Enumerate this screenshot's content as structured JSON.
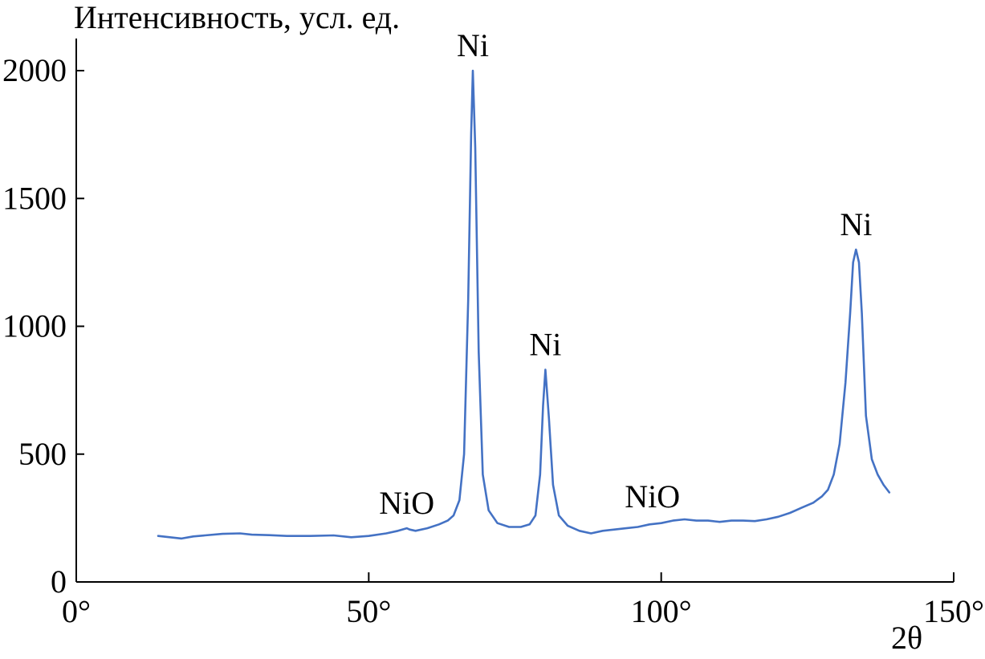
{
  "chart_data": {
    "type": "line",
    "title": "",
    "ylabel": "Интенсивность, усл. ед.",
    "xlabel": "2θ",
    "xlim": [
      0,
      150
    ],
    "ylim": [
      0,
      2000
    ],
    "xticks": [
      0,
      50,
      100,
      150
    ],
    "xtick_labels": [
      "0°",
      "50°",
      "100°",
      "150°"
    ],
    "yticks": [
      0,
      500,
      1000,
      1500,
      2000
    ],
    "ytick_labels": [
      "0",
      "500",
      "1000",
      "1500",
      "2000"
    ],
    "grid": false,
    "legend": "none",
    "colors": {
      "line": "#4472c4"
    },
    "series": [
      {
        "x": [
          14,
          16,
          18,
          20,
          22,
          25,
          28,
          30,
          33,
          36,
          40,
          44,
          47,
          50,
          53,
          55,
          56.5,
          57,
          58,
          60,
          62,
          63.5,
          64.5,
          65.5,
          66.3,
          67,
          67.5,
          67.8,
          68.2,
          68.8,
          69.5,
          70.5,
          72,
          74,
          76,
          77.5,
          78.5,
          79.3,
          79.8,
          80.2,
          80.8,
          81.5,
          82.5,
          84,
          86,
          88,
          90,
          92,
          94,
          96,
          98,
          100,
          102,
          104,
          106,
          108,
          110,
          112,
          114,
          116,
          118,
          120,
          122,
          124,
          126,
          127.5,
          128.5,
          129.5,
          130.5,
          131.5,
          132.3,
          132.8,
          133.3,
          133.8,
          134.3,
          135,
          136,
          137,
          138,
          139
        ],
        "y": [
          180,
          175,
          170,
          178,
          182,
          188,
          190,
          185,
          183,
          180,
          180,
          182,
          175,
          180,
          190,
          200,
          210,
          205,
          200,
          210,
          225,
          240,
          260,
          320,
          500,
          1100,
          1750,
          2000,
          1700,
          900,
          420,
          280,
          230,
          215,
          215,
          225,
          260,
          420,
          690,
          830,
          640,
          380,
          260,
          220,
          200,
          190,
          200,
          205,
          210,
          215,
          225,
          230,
          240,
          245,
          240,
          240,
          235,
          240,
          240,
          238,
          245,
          255,
          270,
          290,
          310,
          335,
          360,
          420,
          540,
          780,
          1050,
          1250,
          1300,
          1250,
          1050,
          650,
          480,
          420,
          380,
          350
        ]
      }
    ],
    "annotations": [
      {
        "text": "Ni",
        "x": 67.8,
        "y": 2000
      },
      {
        "text": "Ni",
        "x": 80.2,
        "y": 830
      },
      {
        "text": "Ni",
        "x": 133.3,
        "y": 1300
      },
      {
        "text": "NiO",
        "x": 56.5,
        "y": 210
      },
      {
        "text": "NiO",
        "x": 98.5,
        "y": 235
      }
    ]
  }
}
